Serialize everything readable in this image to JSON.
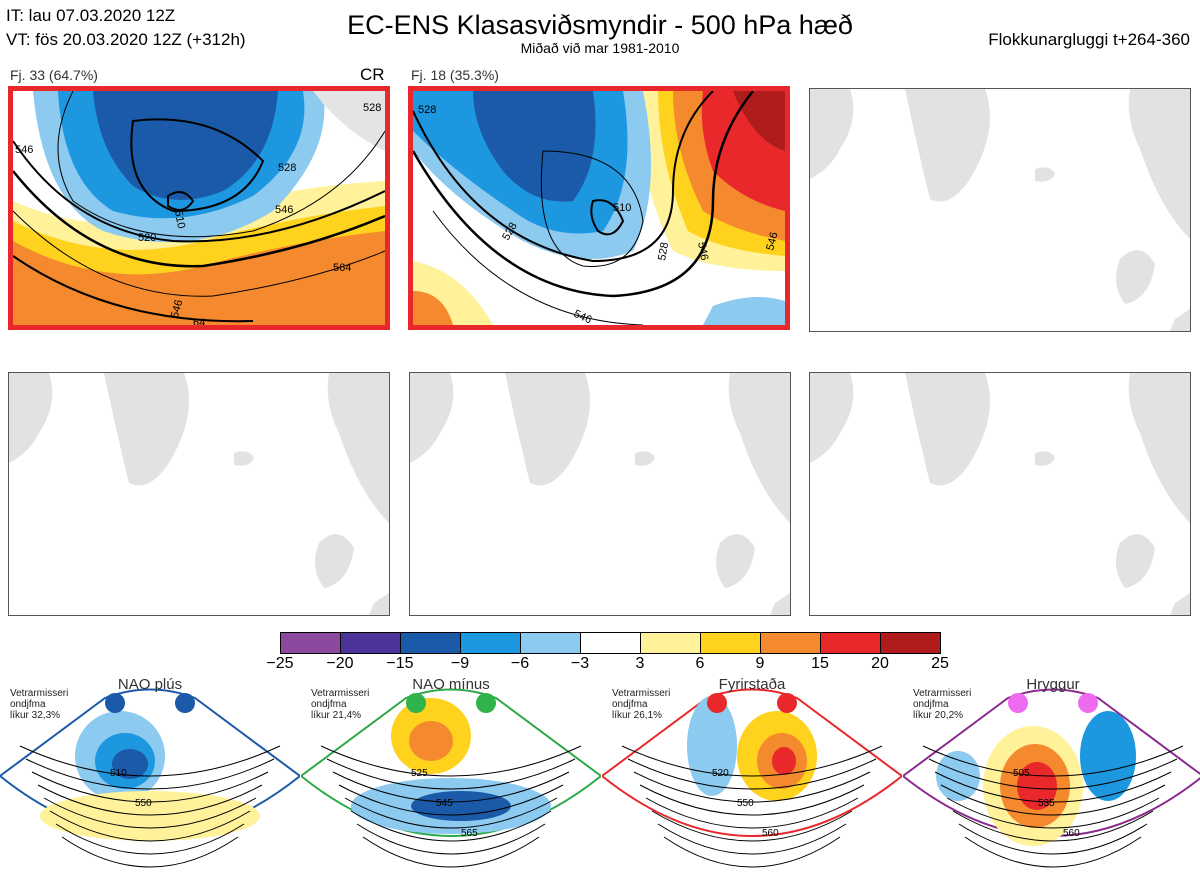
{
  "header": {
    "it_line": "IT: lau 07.03.2020 12Z",
    "vt_line": "VT: fös 20.03.2020 12Z  (+312h)",
    "title": "EC-ENS Klasasviðsmyndir - 500 hPa hæð",
    "subtitle": "Miðað við mar 1981-2010",
    "window": "Flokkunargluggi t+264-360"
  },
  "panels": [
    {
      "label": "Fj. 33 (64.7%)",
      "tag": "CR",
      "selected": true,
      "contours": [
        "510",
        "528",
        "546",
        "564",
        "546",
        "520",
        "528",
        "546",
        "64"
      ]
    },
    {
      "label": "Fj. 18 (35.3%)",
      "tag": "",
      "selected": true,
      "contours": [
        "528",
        "510",
        "528",
        "528",
        "546",
        "546",
        "546"
      ]
    },
    {
      "label": "",
      "tag": "",
      "selected": false
    },
    {
      "label": "",
      "tag": "",
      "selected": false
    },
    {
      "label": "",
      "tag": "",
      "selected": false
    },
    {
      "label": "",
      "tag": "",
      "selected": false
    }
  ],
  "colorbar": {
    "ticks": [
      "-25",
      "-20",
      "-15",
      "-9",
      "-6",
      "-3",
      "3",
      "6",
      "9",
      "15",
      "20",
      "25"
    ],
    "colors": [
      "#8b4a9e",
      "#4b3399",
      "#1a5aa8",
      "#1d98e0",
      "#8ccaf0",
      "#ffffff",
      "#fff29a",
      "#ffd21e",
      "#f4892e",
      "#e8282a",
      "#b01c1c"
    ]
  },
  "regimes": [
    {
      "name": "NAO plús",
      "text1": "Vetrarmisseri",
      "text2": "ondjfma",
      "text3": "líkur 32,3%",
      "color": "#1a5aa8",
      "dot": "#1a5aa8",
      "contours": [
        "510",
        "550"
      ]
    },
    {
      "name": "NAO mínus",
      "text1": "Vetrarmisseri",
      "text2": "ondjfma",
      "text3": "líkur 21,4%",
      "color": "#2da84a",
      "dot": "#2fb34a",
      "contours": [
        "525",
        "545",
        "565"
      ]
    },
    {
      "name": "Fyrirstaða",
      "text1": "Vetrarmisseri",
      "text2": "ondjfma",
      "text3": "líkur 26,1%",
      "color": "#e8282a",
      "dot": "#e8282a",
      "contours": [
        "520",
        "550",
        "560"
      ]
    },
    {
      "name": "Hryggur",
      "text1": "Vetrarmisseri",
      "text2": "ondjfma",
      "text3": "líkur 20,2%",
      "color": "#8b2a8e",
      "dot": "#ee6aee",
      "contours": [
        "505",
        "535",
        "560"
      ]
    }
  ]
}
